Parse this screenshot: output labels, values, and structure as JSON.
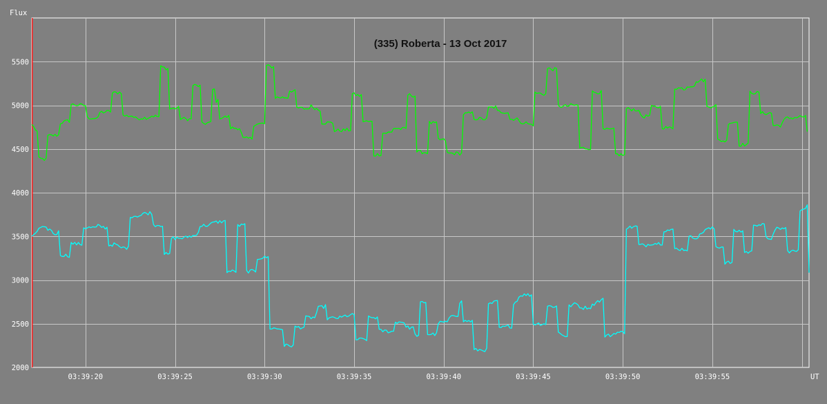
{
  "chart_data": {
    "type": "line",
    "title": "(335) Roberta - 13 Oct 2017",
    "ylabel": "Flux",
    "xlabel": "UT",
    "ylim": [
      2000,
      6000
    ],
    "xlim_seconds": [
      17.0,
      60.4
    ],
    "x_date": "2017-10-13",
    "yticks": [
      2000,
      2500,
      3000,
      3500,
      4000,
      4500,
      5000,
      5500
    ],
    "xticks": [
      {
        "s": 20,
        "label": "03:39:20"
      },
      {
        "s": 25,
        "label": "03:39:25"
      },
      {
        "s": 30,
        "label": "03:39:30"
      },
      {
        "s": 35,
        "label": "03:39:35"
      },
      {
        "s": 40,
        "label": "03:39:40"
      },
      {
        "s": 45,
        "label": "03:39:45"
      },
      {
        "s": 50,
        "label": "03:39:50"
      },
      {
        "s": 55,
        "label": "03:39:55"
      },
      {
        "s": 60,
        "label": ""
      }
    ],
    "grid": true,
    "colors": {
      "series1": "#00ff00",
      "series2": "#00ffff",
      "background": "#808080",
      "grid": "#c8c8c8",
      "cursor": "#ff2020"
    },
    "series": [
      {
        "color": "#00ff00",
        "points": [
          [
            17.0,
            4780
          ],
          [
            17.3,
            4700
          ],
          [
            17.4,
            4390
          ],
          [
            17.8,
            4380
          ],
          [
            17.9,
            4650
          ],
          [
            18.5,
            4660
          ],
          [
            18.6,
            4800
          ],
          [
            19.0,
            4820
          ],
          [
            19.2,
            5010
          ],
          [
            19.8,
            5000
          ],
          [
            20.1,
            4860
          ],
          [
            20.7,
            4850
          ],
          [
            20.8,
            4920
          ],
          [
            21.4,
            4930
          ],
          [
            21.5,
            5140
          ],
          [
            22.0,
            5150
          ],
          [
            22.1,
            4880
          ],
          [
            22.6,
            4880
          ],
          [
            22.8,
            4850
          ],
          [
            23.5,
            4860
          ],
          [
            23.7,
            4880
          ],
          [
            24.1,
            4870
          ],
          [
            24.2,
            5440
          ],
          [
            24.6,
            5420
          ],
          [
            24.7,
            4960
          ],
          [
            25.2,
            4970
          ],
          [
            25.3,
            4850
          ],
          [
            25.8,
            4840
          ],
          [
            26.0,
            5230
          ],
          [
            26.4,
            5220
          ],
          [
            26.5,
            4790
          ],
          [
            26.9,
            4800
          ],
          [
            27.1,
            5180
          ],
          [
            27.3,
            5050
          ],
          [
            27.5,
            4860
          ],
          [
            28.0,
            4870
          ],
          [
            28.1,
            4740
          ],
          [
            28.6,
            4740
          ],
          [
            28.8,
            4620
          ],
          [
            29.3,
            4620
          ],
          [
            29.4,
            4780
          ],
          [
            29.9,
            4790
          ],
          [
            30.1,
            5450
          ],
          [
            30.5,
            5440
          ],
          [
            30.6,
            5090
          ],
          [
            31.3,
            5090
          ],
          [
            31.4,
            5170
          ],
          [
            31.7,
            5160
          ],
          [
            31.8,
            4970
          ],
          [
            32.4,
            4960
          ],
          [
            32.6,
            4990
          ],
          [
            33.0,
            4950
          ],
          [
            33.2,
            4800
          ],
          [
            33.8,
            4800
          ],
          [
            33.9,
            4710
          ],
          [
            34.8,
            4720
          ],
          [
            34.9,
            5130
          ],
          [
            35.3,
            5110
          ],
          [
            35.5,
            4820
          ],
          [
            35.9,
            4810
          ],
          [
            36.1,
            4430
          ],
          [
            36.4,
            4440
          ],
          [
            36.6,
            4680
          ],
          [
            37.1,
            4690
          ],
          [
            37.2,
            4740
          ],
          [
            37.6,
            4730
          ],
          [
            38.0,
            5120
          ],
          [
            38.4,
            5110
          ],
          [
            38.5,
            4470
          ],
          [
            39.0,
            4460
          ],
          [
            39.2,
            4800
          ],
          [
            39.6,
            4790
          ],
          [
            39.7,
            4610
          ],
          [
            40.1,
            4600
          ],
          [
            40.2,
            4450
          ],
          [
            40.7,
            4450
          ],
          [
            41.1,
            4900
          ],
          [
            41.6,
            4910
          ],
          [
            41.7,
            4850
          ],
          [
            42.4,
            4840
          ],
          [
            42.5,
            4970
          ],
          [
            42.9,
            4980
          ],
          [
            43.0,
            4930
          ],
          [
            43.6,
            4920
          ],
          [
            43.7,
            4840
          ],
          [
            44.1,
            4850
          ],
          [
            44.2,
            4810
          ],
          [
            44.6,
            4800
          ],
          [
            44.8,
            4780
          ],
          [
            45.1,
            5140
          ],
          [
            45.6,
            5130
          ],
          [
            45.8,
            5420
          ],
          [
            46.2,
            5410
          ],
          [
            46.4,
            4990
          ],
          [
            46.9,
            4990
          ],
          [
            47.1,
            5000
          ],
          [
            47.5,
            5000
          ],
          [
            47.6,
            4510
          ],
          [
            48.1,
            4510
          ],
          [
            48.3,
            5150
          ],
          [
            48.8,
            5150
          ],
          [
            48.9,
            4720
          ],
          [
            49.3,
            4720
          ],
          [
            49.6,
            4440
          ],
          [
            50.1,
            4430
          ],
          [
            50.2,
            4960
          ],
          [
            50.8,
            4950
          ],
          [
            51.1,
            4870
          ],
          [
            51.5,
            4880
          ],
          [
            51.6,
            4980
          ],
          [
            51.8,
            4980
          ],
          [
            52.2,
            4750
          ],
          [
            52.6,
            4740
          ],
          [
            52.9,
            5200
          ],
          [
            53.5,
            5190
          ],
          [
            53.6,
            5220
          ],
          [
            54.0,
            5230
          ],
          [
            54.2,
            5280
          ],
          [
            54.6,
            5290
          ],
          [
            54.7,
            4980
          ],
          [
            55.1,
            5000
          ],
          [
            55.3,
            4600
          ],
          [
            55.8,
            4590
          ],
          [
            55.9,
            4800
          ],
          [
            56.3,
            4810
          ],
          [
            56.5,
            4550
          ],
          [
            56.9,
            4550
          ],
          [
            57.1,
            5150
          ],
          [
            57.6,
            5140
          ],
          [
            57.7,
            4910
          ],
          [
            58.2,
            4910
          ],
          [
            58.4,
            4770
          ],
          [
            58.8,
            4770
          ],
          [
            59.1,
            4850
          ],
          [
            59.6,
            4860
          ],
          [
            59.9,
            4870
          ],
          [
            60.3,
            4680
          ]
        ]
      },
      {
        "color": "#00ffff",
        "points": [
          [
            17.0,
            3500
          ],
          [
            17.3,
            3560
          ],
          [
            17.5,
            3600
          ],
          [
            18.0,
            3580
          ],
          [
            18.3,
            3520
          ],
          [
            18.5,
            3550
          ],
          [
            18.6,
            3290
          ],
          [
            19.0,
            3280
          ],
          [
            19.2,
            3420
          ],
          [
            19.7,
            3410
          ],
          [
            19.9,
            3600
          ],
          [
            20.6,
            3600
          ],
          [
            20.7,
            3620
          ],
          [
            21.1,
            3600
          ],
          [
            21.3,
            3400
          ],
          [
            21.7,
            3410
          ],
          [
            21.9,
            3370
          ],
          [
            22.3,
            3370
          ],
          [
            22.5,
            3730
          ],
          [
            23.1,
            3740
          ],
          [
            23.2,
            3760
          ],
          [
            23.7,
            3770
          ],
          [
            23.8,
            3630
          ],
          [
            24.2,
            3630
          ],
          [
            24.4,
            3300
          ],
          [
            24.7,
            3290
          ],
          [
            24.8,
            3480
          ],
          [
            25.5,
            3480
          ],
          [
            25.8,
            3500
          ],
          [
            26.2,
            3510
          ],
          [
            26.4,
            3620
          ],
          [
            26.9,
            3630
          ],
          [
            27.2,
            3660
          ],
          [
            27.6,
            3670
          ],
          [
            27.9,
            3100
          ],
          [
            28.3,
            3100
          ],
          [
            28.5,
            3620
          ],
          [
            28.9,
            3630
          ],
          [
            29.0,
            3100
          ],
          [
            29.5,
            3100
          ],
          [
            29.6,
            3250
          ],
          [
            30.1,
            3260
          ],
          [
            30.3,
            2450
          ],
          [
            30.9,
            2440
          ],
          [
            31.1,
            2250
          ],
          [
            31.6,
            2250
          ],
          [
            31.7,
            2460
          ],
          [
            32.2,
            2460
          ],
          [
            32.3,
            2570
          ],
          [
            32.8,
            2570
          ],
          [
            33.0,
            2680
          ],
          [
            33.4,
            2700
          ],
          [
            33.5,
            2560
          ],
          [
            34.3,
            2570
          ],
          [
            34.5,
            2590
          ],
          [
            35.0,
            2600
          ],
          [
            35.1,
            2320
          ],
          [
            35.7,
            2320
          ],
          [
            35.8,
            2570
          ],
          [
            36.3,
            2570
          ],
          [
            36.4,
            2420
          ],
          [
            37.2,
            2410
          ],
          [
            37.3,
            2520
          ],
          [
            37.8,
            2520
          ],
          [
            37.9,
            2460
          ],
          [
            38.3,
            2450
          ],
          [
            38.5,
            2350
          ],
          [
            38.7,
            2740
          ],
          [
            39.0,
            2750
          ],
          [
            39.1,
            2380
          ],
          [
            39.5,
            2380
          ],
          [
            39.7,
            2510
          ],
          [
            40.2,
            2520
          ],
          [
            40.5,
            2600
          ],
          [
            40.9,
            2750
          ],
          [
            41.1,
            2530
          ],
          [
            41.7,
            2200
          ],
          [
            42.3,
            2200
          ],
          [
            42.5,
            2720
          ],
          [
            42.9,
            2750
          ],
          [
            43.1,
            2450
          ],
          [
            43.6,
            2470
          ],
          [
            43.9,
            2720
          ],
          [
            44.3,
            2830
          ],
          [
            44.8,
            2830
          ],
          [
            45.0,
            2500
          ],
          [
            45.6,
            2500
          ],
          [
            45.8,
            2700
          ],
          [
            46.2,
            2700
          ],
          [
            46.4,
            2400
          ],
          [
            46.9,
            2350
          ],
          [
            47.0,
            2700
          ],
          [
            47.4,
            2730
          ],
          [
            47.7,
            2680
          ],
          [
            48.2,
            2690
          ],
          [
            48.5,
            2750
          ],
          [
            48.9,
            2780
          ],
          [
            49.0,
            2360
          ],
          [
            49.4,
            2370
          ],
          [
            49.6,
            2400
          ],
          [
            50.1,
            2400
          ],
          [
            50.2,
            3600
          ],
          [
            50.7,
            3610
          ],
          [
            50.9,
            3400
          ],
          [
            51.3,
            3400
          ],
          [
            51.6,
            3420
          ],
          [
            52.1,
            3420
          ],
          [
            52.3,
            3570
          ],
          [
            52.7,
            3570
          ],
          [
            52.9,
            3360
          ],
          [
            53.5,
            3350
          ],
          [
            53.7,
            3490
          ],
          [
            54.2,
            3490
          ],
          [
            54.6,
            3580
          ],
          [
            55.0,
            3590
          ],
          [
            55.2,
            3380
          ],
          [
            55.6,
            3380
          ],
          [
            55.7,
            3200
          ],
          [
            56.0,
            3200
          ],
          [
            56.2,
            3560
          ],
          [
            56.6,
            3560
          ],
          [
            56.8,
            3320
          ],
          [
            57.1,
            3320
          ],
          [
            57.3,
            3640
          ],
          [
            57.8,
            3630
          ],
          [
            58.0,
            3480
          ],
          [
            58.3,
            3480
          ],
          [
            58.6,
            3590
          ],
          [
            59.1,
            3590
          ],
          [
            59.2,
            3330
          ],
          [
            59.7,
            3330
          ],
          [
            59.9,
            3800
          ],
          [
            60.3,
            3850
          ],
          [
            60.4,
            3100
          ]
        ]
      }
    ]
  }
}
